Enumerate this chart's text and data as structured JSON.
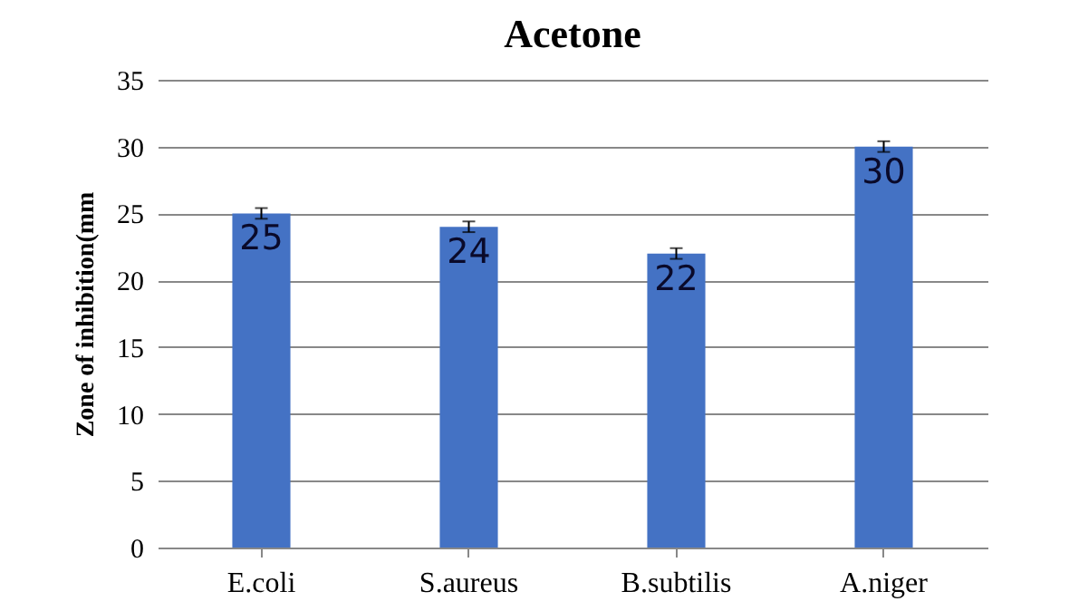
{
  "chart_data": {
    "type": "bar",
    "title": "Acetone",
    "ylabel": "Zone of inhibition(mm",
    "categories": [
      "E.coli",
      "S.aureus",
      "B.subtilis",
      "A.niger"
    ],
    "values": [
      25,
      24,
      22,
      30
    ],
    "errors": [
      0.4,
      0.4,
      0.4,
      0.4
    ],
    "color": "#4472c4",
    "data_labels": true,
    "ylim": [
      0,
      35
    ],
    "yticks": [
      0,
      5,
      10,
      15,
      20,
      25,
      30,
      35
    ],
    "grid": "y"
  }
}
